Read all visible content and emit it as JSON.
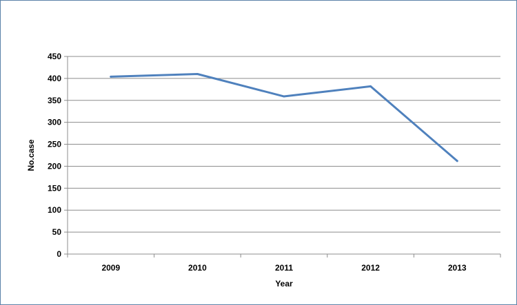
{
  "chart_data": {
    "type": "line",
    "title": "",
    "xlabel": "Year",
    "ylabel": "No.case",
    "categories": [
      "2009",
      "2010",
      "2011",
      "2012",
      "2013"
    ],
    "series": [
      {
        "values": [
          404,
          410,
          359,
          382,
          212
        ]
      }
    ],
    "ylim": [
      0,
      450
    ],
    "yticks": [
      0,
      50,
      100,
      150,
      200,
      250,
      300,
      350,
      400,
      450
    ],
    "grid": true,
    "legend": "none",
    "colors": {
      "line": "#4f81bd",
      "grid": "#8c8c8c",
      "axis": "#8c8c8c",
      "border": "#5b82a8"
    }
  }
}
